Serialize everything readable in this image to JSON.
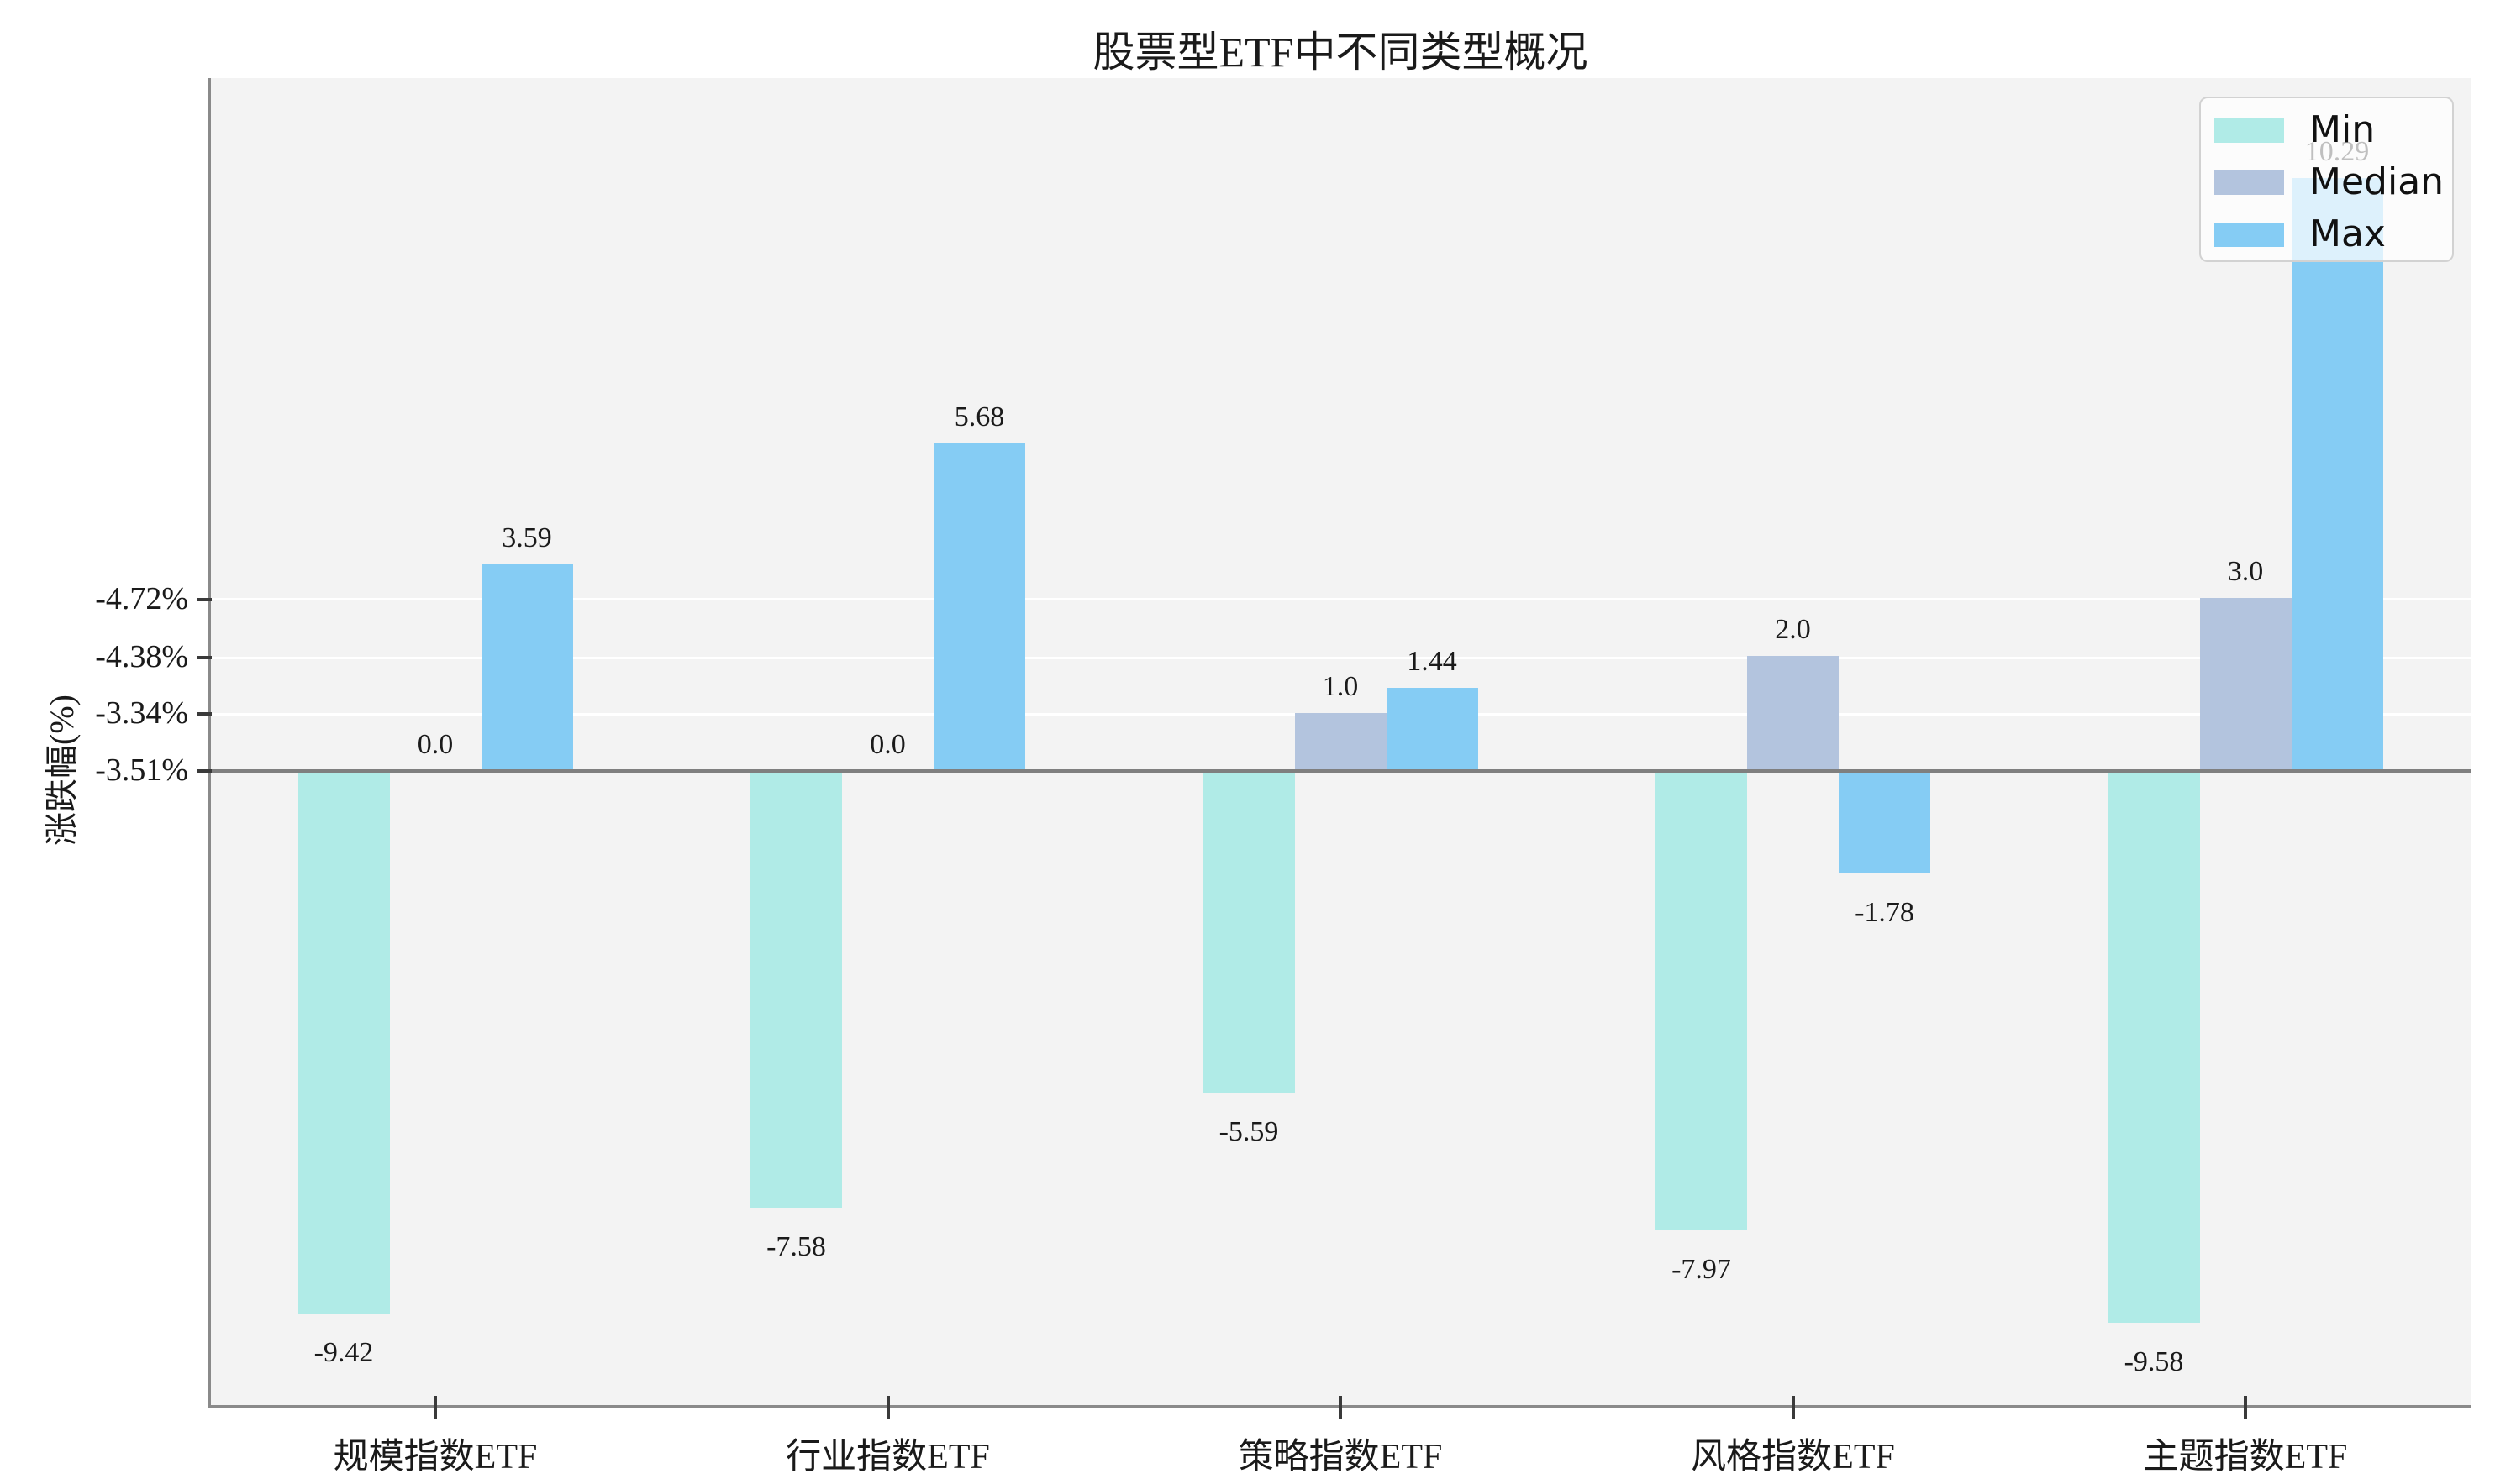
{
  "title": "股票型ETF中不同类型概况",
  "y_axis": {
    "label": "涨跌幅(%)",
    "tick_labels": [
      "-4.72%",
      "-4.38%",
      "-3.34%",
      "-3.51%"
    ]
  },
  "legend": {
    "items": [
      {
        "label": "Min",
        "color": "#b0ebe7"
      },
      {
        "label": "Median",
        "color": "#b3c4de"
      },
      {
        "label": "Max",
        "color": "#85ccf4"
      }
    ]
  },
  "colors": {
    "min_bar": "#b0ebe7",
    "median_bar": "#b3c4de",
    "max_bar": "#85ccf4",
    "panel_background": "#f3f3f3",
    "gridline": "#ffffff",
    "zero_line": "#7f7f7f"
  },
  "chart_data": {
    "type": "bar",
    "title": "股票型ETF中不同类型概况",
    "xlabel": "",
    "ylabel": "涨跌幅(%)",
    "categories": [
      "规模指数ETF",
      "行业指数ETF",
      "策略指数ETF",
      "风格指数ETF",
      "主题指数ETF"
    ],
    "series": [
      {
        "name": "Min",
        "color": "#b0ebe7",
        "values": [
          -9.42,
          -7.58,
          -5.59,
          -7.97,
          -9.58
        ],
        "labels": [
          "-9.42",
          "-7.58",
          "-5.59",
          "-7.97",
          "-9.58"
        ]
      },
      {
        "name": "Median",
        "color": "#b3c4de",
        "values": [
          0.0,
          0.0,
          1.0,
          2.0,
          3.0
        ],
        "labels": [
          "0.0",
          "0.0",
          "1.0",
          "2.0",
          "3.0"
        ]
      },
      {
        "name": "Max",
        "color": "#85ccf4",
        "values": [
          3.59,
          5.68,
          1.44,
          -1.78,
          10.29
        ],
        "labels": [
          "3.59",
          "5.68",
          "1.44",
          "-1.78",
          "10.29"
        ]
      }
    ],
    "y_tick_labels": [
      "-4.72%",
      "-4.38%",
      "-3.34%",
      "-3.51%"
    ],
    "ylim_approx": [
      -11.0,
      12.0
    ],
    "grid": true,
    "legend_position": "upper right",
    "bar_value_labels_shown": true
  }
}
